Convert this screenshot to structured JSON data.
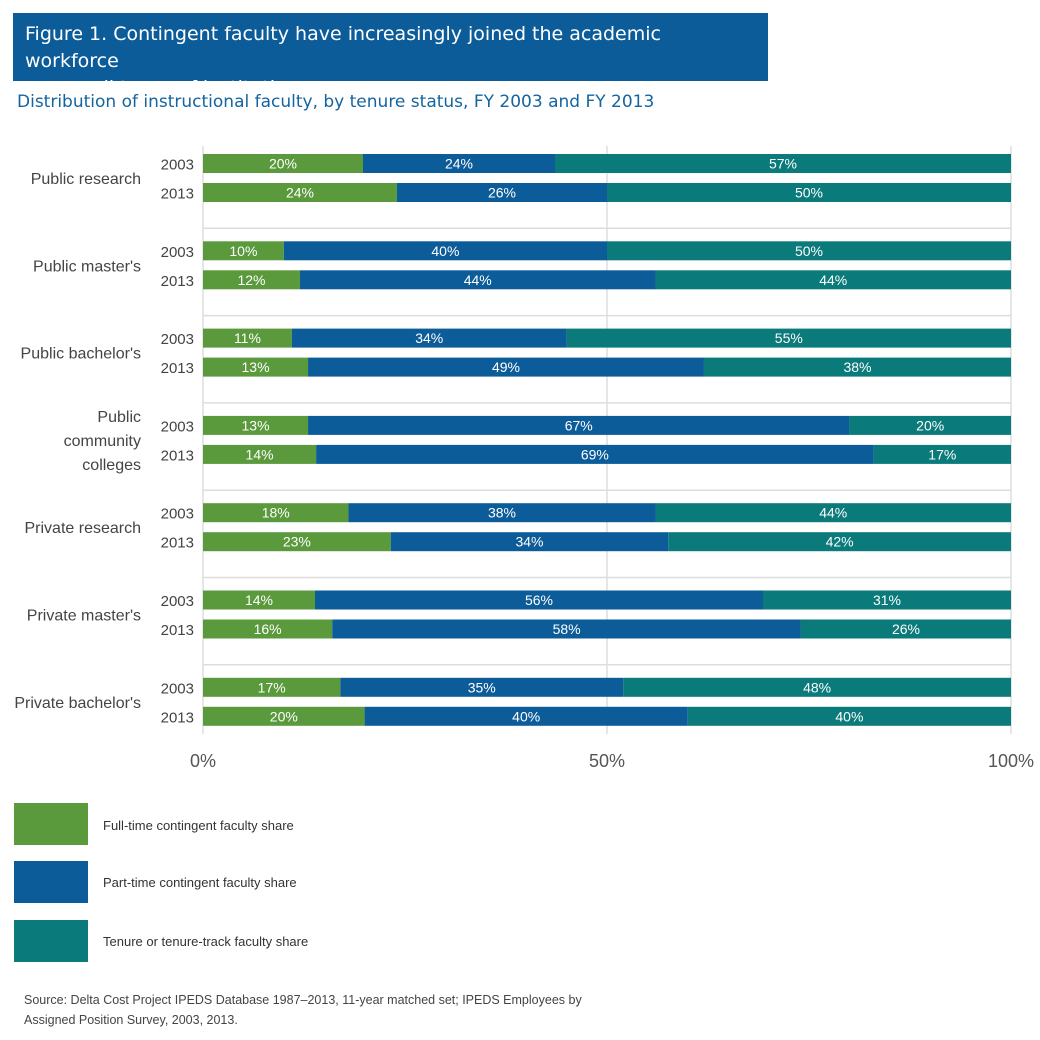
{
  "title": {
    "line1": "Figure 1. Contingent faculty have increasingly joined the academic workforce",
    "line2": "across all types of institutions"
  },
  "subtitle": "Distribution of instructional faculty, by tenure status, FY 2003 and FY 2013",
  "colors": {
    "full_time": "#5a9a3c",
    "part_time": "#0d5c9a",
    "tenure": "#0a7a7a",
    "grid": "#cccccc",
    "separator": "#dddddd"
  },
  "chart_data": {
    "type": "bar",
    "orientation": "horizontal",
    "stacked": "100%",
    "xlim": [
      0,
      100
    ],
    "xticks": [
      "0%",
      "50%",
      "100%"
    ],
    "series_names": [
      "Full-time contingent faculty share",
      "Part-time contingent faculty share",
      "Tenure or tenure-track faculty share"
    ],
    "groups": [
      {
        "label": [
          "Public research"
        ],
        "bars": [
          {
            "year": "2003",
            "values": [
              20,
              24,
              57
            ]
          },
          {
            "year": "2013",
            "values": [
              24,
              26,
              50
            ]
          }
        ]
      },
      {
        "label": [
          "Public master's"
        ],
        "bars": [
          {
            "year": "2003",
            "values": [
              10,
              40,
              50
            ]
          },
          {
            "year": "2013",
            "values": [
              12,
              44,
              44
            ]
          }
        ]
      },
      {
        "label": [
          "Public bachelor's"
        ],
        "bars": [
          {
            "year": "2003",
            "values": [
              11,
              34,
              55
            ]
          },
          {
            "year": "2013",
            "values": [
              13,
              49,
              38
            ]
          }
        ]
      },
      {
        "label": [
          "Public",
          "community",
          "colleges"
        ],
        "bars": [
          {
            "year": "2003",
            "values": [
              13,
              67,
              20
            ]
          },
          {
            "year": "2013",
            "values": [
              14,
              69,
              17
            ]
          }
        ]
      },
      {
        "label": [
          "Private research"
        ],
        "bars": [
          {
            "year": "2003",
            "values": [
              18,
              38,
              44
            ]
          },
          {
            "year": "2013",
            "values": [
              23,
              34,
              42
            ]
          }
        ]
      },
      {
        "label": [
          "Private master's"
        ],
        "bars": [
          {
            "year": "2003",
            "values": [
              14,
              56,
              31
            ]
          },
          {
            "year": "2013",
            "values": [
              16,
              58,
              26
            ]
          }
        ]
      },
      {
        "label": [
          "Private bachelor's"
        ],
        "bars": [
          {
            "year": "2003",
            "values": [
              17,
              35,
              48
            ]
          },
          {
            "year": "2013",
            "values": [
              20,
              40,
              40
            ]
          }
        ]
      }
    ]
  },
  "legend": {
    "full_time": "Full-time contingent faculty share",
    "part_time": "Part-time contingent faculty share",
    "tenure": "Tenure or tenure-track faculty share"
  },
  "source": {
    "line1": "Source: Delta Cost Project IPEDS Database 1987–2013, 11-year matched set; IPEDS Employees by",
    "line2": "Assigned Position Survey, 2003, 2013."
  }
}
